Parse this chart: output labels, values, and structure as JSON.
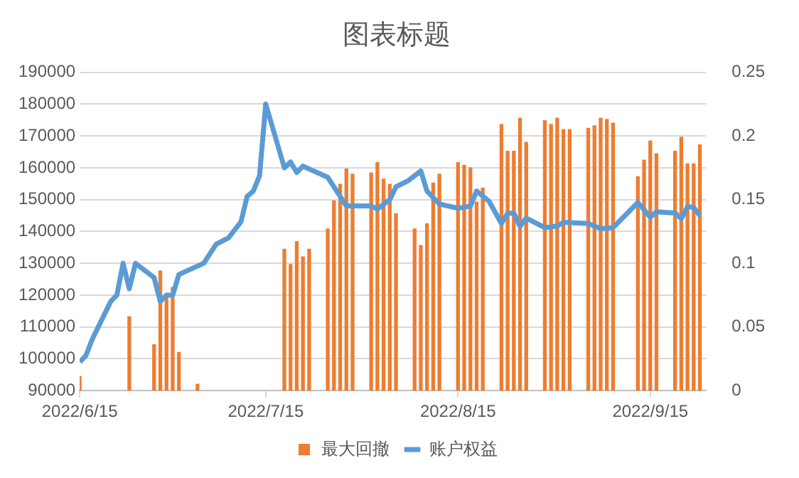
{
  "chart_data": {
    "type": "bar",
    "title": "图表标题",
    "xlim": [
      "2022-06-15",
      "2022-09-24"
    ],
    "xticks": [
      {
        "value": "2022-06-15",
        "label": "2022/6/15"
      },
      {
        "value": "2022-07-15",
        "label": "2022/7/15"
      },
      {
        "value": "2022-08-15",
        "label": "2022/8/15"
      },
      {
        "value": "2022-09-15",
        "label": "2022/9/15"
      }
    ],
    "ylim": [
      90000,
      190000
    ],
    "yticks": [
      90000,
      100000,
      110000,
      120000,
      130000,
      140000,
      150000,
      160000,
      170000,
      180000,
      190000
    ],
    "y2lim": [
      0,
      0.25
    ],
    "y2ticks": [
      0,
      0.05,
      0.1,
      0.15,
      0.2,
      0.25
    ],
    "grid": "y",
    "legend": "bottom",
    "series": [
      {
        "name": "最大回撤",
        "axis": "y2",
        "color": "#ed7d31",
        "x": [
          "2022-06-15",
          "2022-06-23",
          "2022-06-27",
          "2022-06-28",
          "2022-06-29",
          "2022-06-30",
          "2022-07-01",
          "2022-07-04",
          "2022-07-18",
          "2022-07-19",
          "2022-07-20",
          "2022-07-21",
          "2022-07-22",
          "2022-07-25",
          "2022-07-26",
          "2022-07-27",
          "2022-07-28",
          "2022-07-29",
          "2022-08-01",
          "2022-08-02",
          "2022-08-03",
          "2022-08-04",
          "2022-08-05",
          "2022-08-08",
          "2022-08-09",
          "2022-08-10",
          "2022-08-11",
          "2022-08-12",
          "2022-08-15",
          "2022-08-16",
          "2022-08-17",
          "2022-08-18",
          "2022-08-19",
          "2022-08-22",
          "2022-08-23",
          "2022-08-24",
          "2022-08-25",
          "2022-08-26",
          "2022-08-29",
          "2022-08-30",
          "2022-08-31",
          "2022-09-01",
          "2022-09-02",
          "2022-09-05",
          "2022-09-06",
          "2022-09-07",
          "2022-09-08",
          "2022-09-09",
          "2022-09-13",
          "2022-09-14",
          "2022-09-15",
          "2022-09-16",
          "2022-09-19",
          "2022-09-20",
          "2022-09-21",
          "2022-09-22",
          "2022-09-23"
        ],
        "values": [
          0.011,
          0.058,
          0.036,
          0.094,
          0.075,
          0.081,
          0.03,
          0.005,
          0.111,
          0.099,
          0.117,
          0.105,
          0.111,
          0.127,
          0.149,
          0.162,
          0.174,
          0.17,
          0.171,
          0.179,
          0.166,
          0.162,
          0.139,
          0.127,
          0.114,
          0.131,
          0.163,
          0.17,
          0.179,
          0.177,
          0.175,
          0.148,
          0.159,
          0.209,
          0.188,
          0.188,
          0.214,
          0.195,
          0.212,
          0.209,
          0.214,
          0.205,
          0.205,
          0.206,
          0.208,
          0.214,
          0.213,
          0.21,
          0.168,
          0.181,
          0.196,
          0.186,
          0.188,
          0.199,
          0.178,
          0.178,
          0.193
        ]
      },
      {
        "name": "账户权益",
        "type": "line",
        "color": "#5b9bd5",
        "marker": "none",
        "x": [
          "2022-06-15",
          "2022-06-16",
          "2022-06-17",
          "2022-06-20",
          "2022-06-21",
          "2022-06-22",
          "2022-06-23",
          "2022-06-24",
          "2022-06-27",
          "2022-06-28",
          "2022-06-29",
          "2022-06-30",
          "2022-07-01",
          "2022-07-05",
          "2022-07-07",
          "2022-07-09",
          "2022-07-11",
          "2022-07-12",
          "2022-07-13",
          "2022-07-14",
          "2022-07-15",
          "2022-07-18",
          "2022-07-19",
          "2022-07-20",
          "2022-07-21",
          "2022-07-25",
          "2022-07-27",
          "2022-07-28",
          "2022-08-01",
          "2022-08-02",
          "2022-08-04",
          "2022-08-05",
          "2022-08-07",
          "2022-08-09",
          "2022-08-10",
          "2022-08-12",
          "2022-08-15",
          "2022-08-17",
          "2022-08-18",
          "2022-08-20",
          "2022-08-22",
          "2022-08-23",
          "2022-08-24",
          "2022-08-25",
          "2022-08-26",
          "2022-08-29",
          "2022-08-31",
          "2022-09-01",
          "2022-09-05",
          "2022-09-07",
          "2022-09-09",
          "2022-09-13",
          "2022-09-15",
          "2022-09-16",
          "2022-09-19",
          "2022-09-20",
          "2022-09-21",
          "2022-09-22",
          "2022-09-23"
        ],
        "values": [
          99000,
          101000,
          106000,
          118000,
          120000,
          130000,
          122000,
          130000,
          125500,
          118000,
          120000,
          120000,
          126500,
          130000,
          136000,
          138000,
          143000,
          151000,
          152700,
          157500,
          180000,
          160000,
          161800,
          158500,
          160500,
          157000,
          151000,
          148000,
          148000,
          147000,
          150000,
          154000,
          156000,
          159000,
          152700,
          148600,
          147300,
          148000,
          152700,
          149500,
          142500,
          145700,
          145800,
          141600,
          144200,
          141200,
          141700,
          142900,
          142500,
          140900,
          141200,
          149100,
          144500,
          146200,
          145800,
          144000,
          147800,
          147500,
          145000
        ]
      }
    ]
  }
}
